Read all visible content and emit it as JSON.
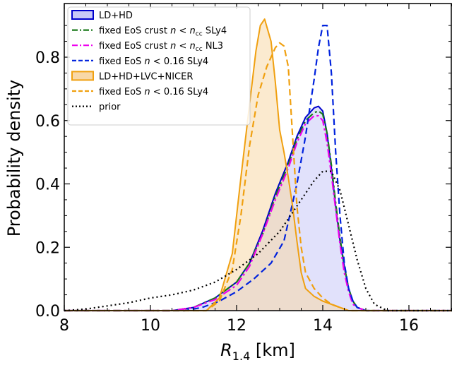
{
  "chart_data": {
    "type": "area",
    "xlabel": "R_{1.4} [km]",
    "ylabel": "Probability density",
    "xlim": [
      8,
      17
    ],
    "ylim": [
      0,
      0.95
    ],
    "xticks": [
      8,
      10,
      12,
      14,
      16
    ],
    "yticks": [
      0.0,
      0.2,
      0.4,
      0.6,
      0.8
    ],
    "xtick_labels": [
      "8",
      "10",
      "12",
      "14",
      "16"
    ],
    "ytick_labels": [
      "0.0",
      "0.2",
      "0.4",
      "0.6",
      "0.8"
    ],
    "grid": false,
    "legend_position": "top-left",
    "series": [
      {
        "name": "LD+HD",
        "kind": "filled",
        "color": "#0000cc",
        "fill": "#c9c9f7",
        "x": [
          8.0,
          10.5,
          11.0,
          11.5,
          12.0,
          12.3,
          12.6,
          12.9,
          13.2,
          13.4,
          13.6,
          13.8,
          13.9,
          14.0,
          14.1,
          14.2,
          14.3,
          14.4,
          14.5,
          14.6,
          14.7,
          14.8,
          15.0,
          17.0
        ],
        "y": [
          0.0,
          0.0,
          0.01,
          0.04,
          0.09,
          0.15,
          0.25,
          0.37,
          0.47,
          0.55,
          0.61,
          0.64,
          0.645,
          0.63,
          0.56,
          0.45,
          0.33,
          0.22,
          0.14,
          0.07,
          0.03,
          0.01,
          0.0,
          0.0
        ]
      },
      {
        "name": "fixed EoS crust n < n_cc SLy4",
        "kind": "line",
        "color": "#1a7a1a",
        "dash": "dashdot",
        "x": [
          8.0,
          10.5,
          11.0,
          11.5,
          12.0,
          12.3,
          12.6,
          12.9,
          13.2,
          13.4,
          13.6,
          13.8,
          13.9,
          14.0,
          14.1,
          14.2,
          14.3,
          14.4,
          14.5,
          14.6,
          14.7,
          14.8,
          15.0,
          17.0
        ],
        "y": [
          0.0,
          0.0,
          0.01,
          0.04,
          0.09,
          0.15,
          0.24,
          0.36,
          0.46,
          0.54,
          0.6,
          0.625,
          0.63,
          0.62,
          0.56,
          0.46,
          0.34,
          0.23,
          0.14,
          0.07,
          0.03,
          0.01,
          0.0,
          0.0
        ]
      },
      {
        "name": "fixed EoS crust n < n_cc NL3",
        "kind": "line",
        "color": "#ee00ee",
        "dash": "dashdot",
        "x": [
          8.0,
          10.5,
          11.0,
          11.5,
          12.0,
          12.3,
          12.6,
          12.9,
          13.2,
          13.4,
          13.6,
          13.8,
          13.9,
          14.0,
          14.1,
          14.2,
          14.3,
          14.4,
          14.5,
          14.6,
          14.7,
          14.8,
          15.0,
          17.0
        ],
        "y": [
          0.0,
          0.0,
          0.01,
          0.035,
          0.08,
          0.14,
          0.24,
          0.35,
          0.45,
          0.53,
          0.59,
          0.615,
          0.615,
          0.6,
          0.53,
          0.43,
          0.32,
          0.21,
          0.12,
          0.06,
          0.02,
          0.01,
          0.0,
          0.0
        ]
      },
      {
        "name": "fixed EoS n < 0.16 SLy4",
        "kind": "line",
        "color": "#0022dd",
        "dash": "dashed",
        "x": [
          8.0,
          10.8,
          11.2,
          11.6,
          12.0,
          12.4,
          12.8,
          13.1,
          13.4,
          13.6,
          13.8,
          13.9,
          14.0,
          14.1,
          14.2,
          14.3,
          14.4,
          14.5,
          14.6,
          14.7,
          14.8,
          15.0,
          17.0
        ],
        "y": [
          0.0,
          0.0,
          0.01,
          0.03,
          0.06,
          0.1,
          0.15,
          0.22,
          0.4,
          0.55,
          0.73,
          0.83,
          0.9,
          0.9,
          0.75,
          0.5,
          0.3,
          0.15,
          0.07,
          0.03,
          0.01,
          0.0,
          0.0
        ]
      },
      {
        "name": "LD+HD+LVC+NICER",
        "kind": "filled",
        "color": "#f0a010",
        "fill": "#f8d8a8",
        "x": [
          8.0,
          11.3,
          11.6,
          11.9,
          12.1,
          12.3,
          12.45,
          12.55,
          12.65,
          12.8,
          12.9,
          13.0,
          13.1,
          13.2,
          13.3,
          13.4,
          13.5,
          13.6,
          13.8,
          14.0,
          14.2,
          14.4,
          14.6,
          17.0
        ],
        "y": [
          0.0,
          0.0,
          0.04,
          0.18,
          0.42,
          0.65,
          0.82,
          0.9,
          0.92,
          0.85,
          0.72,
          0.57,
          0.5,
          0.42,
          0.33,
          0.22,
          0.12,
          0.07,
          0.045,
          0.03,
          0.02,
          0.01,
          0.0,
          0.0
        ]
      },
      {
        "name": "fixed EoS n < 0.16 SLy4",
        "kind": "line",
        "color": "#f0a010",
        "dash": "dashed",
        "x": [
          8.0,
          11.3,
          11.6,
          11.9,
          12.1,
          12.3,
          12.5,
          12.7,
          12.9,
          13.0,
          13.1,
          13.2,
          13.3,
          13.4,
          13.5,
          13.6,
          13.8,
          14.0,
          14.2,
          14.4,
          14.6,
          17.0
        ],
        "y": [
          0.0,
          0.0,
          0.03,
          0.13,
          0.3,
          0.52,
          0.68,
          0.77,
          0.83,
          0.845,
          0.835,
          0.77,
          0.55,
          0.33,
          0.2,
          0.12,
          0.07,
          0.04,
          0.02,
          0.01,
          0.0,
          0.0
        ]
      },
      {
        "name": "prior",
        "kind": "line",
        "color": "#000000",
        "dash": "dotted",
        "x": [
          8.0,
          8.5,
          9.0,
          9.5,
          10.0,
          10.5,
          11.0,
          11.5,
          12.0,
          12.5,
          13.0,
          13.5,
          13.8,
          14.0,
          14.2,
          14.4,
          14.6,
          14.8,
          15.0,
          15.2,
          15.5,
          17.0
        ],
        "y": [
          0.0,
          0.005,
          0.015,
          0.025,
          0.04,
          0.05,
          0.065,
          0.09,
          0.13,
          0.18,
          0.25,
          0.35,
          0.41,
          0.44,
          0.44,
          0.38,
          0.27,
          0.16,
          0.07,
          0.02,
          0.0,
          0.0
        ]
      }
    ]
  },
  "legend": {
    "items": [
      {
        "prefix": "LD+HD",
        "mid": "",
        "sup": "",
        "sub": "",
        "suffix": ""
      },
      {
        "prefix": "fixed EoS crust ",
        "mid": "n < n",
        "sup": "",
        "sub": "cc",
        "suffix": " SLy4"
      },
      {
        "prefix": "fixed EoS crust ",
        "mid": "n < n",
        "sup": "",
        "sub": "cc",
        "suffix": " NL3"
      },
      {
        "prefix": "fixed EoS ",
        "mid": "n",
        "sup": "",
        "sub": "",
        "suffix": " < 0.16 SLy4"
      },
      {
        "prefix": "LD+HD+LVC+NICER",
        "mid": "",
        "sup": "",
        "sub": "",
        "suffix": ""
      },
      {
        "prefix": "fixed EoS ",
        "mid": "n",
        "sup": "",
        "sub": "",
        "suffix": " < 0.16 SLy4"
      },
      {
        "prefix": "prior",
        "mid": "",
        "sup": "",
        "sub": "",
        "suffix": ""
      }
    ]
  },
  "axis_text": {
    "xlabel_main": "R",
    "xlabel_sub": "1.4",
    "xlabel_unit": " [km]",
    "ylabel": "Probability density"
  }
}
